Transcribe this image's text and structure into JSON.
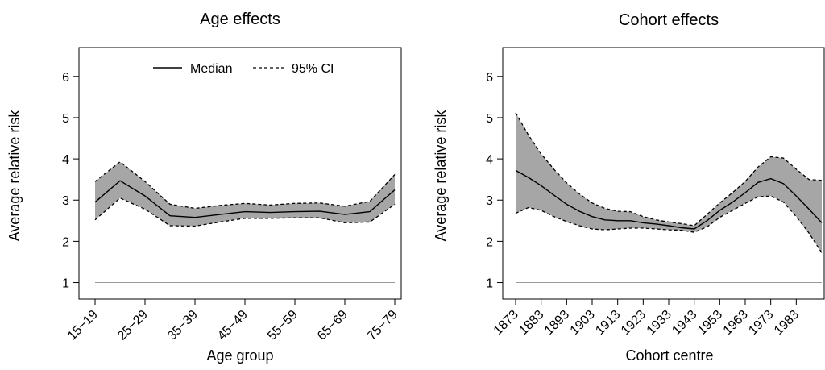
{
  "chart_data": [
    {
      "type": "area",
      "title": "Age effects",
      "xlabel": "Age group",
      "ylabel": "Average relative risk",
      "ylim": [
        0.6,
        6.7
      ],
      "y_ticks": [
        1,
        2,
        3,
        4,
        5,
        6
      ],
      "categories": [
        "15−19",
        "20−24",
        "25−29",
        "30−34",
        "35−39",
        "40−44",
        "45−49",
        "50−54",
        "55−59",
        "60−64",
        "65−69",
        "70−74",
        "75−79"
      ],
      "tick_labels": [
        "15−19",
        "25−29",
        "35−39",
        "45−49",
        "55−59",
        "65−69",
        "75−79"
      ],
      "reference_line": 1,
      "legend": {
        "placement": "top",
        "median_label": "Median",
        "ci_label": "95% CI"
      },
      "series": [
        {
          "name": "Median",
          "values": [
            2.95,
            3.47,
            3.1,
            2.62,
            2.58,
            2.65,
            2.72,
            2.7,
            2.72,
            2.73,
            2.65,
            2.72,
            3.25
          ]
        },
        {
          "name": "95% CI",
          "lower": [
            2.52,
            3.05,
            2.78,
            2.38,
            2.37,
            2.47,
            2.56,
            2.56,
            2.57,
            2.57,
            2.45,
            2.47,
            2.9
          ],
          "upper": [
            3.45,
            3.93,
            3.45,
            2.9,
            2.8,
            2.87,
            2.92,
            2.88,
            2.92,
            2.93,
            2.85,
            2.97,
            3.62
          ]
        }
      ],
      "colors": {
        "band": "#a6a6a6",
        "line": "#000000",
        "reference": "#9a9a9a"
      }
    },
    {
      "type": "area",
      "title": "Cohort effects",
      "xlabel": "Cohort centre",
      "ylabel": "Average relative risk",
      "ylim": [
        0.6,
        6.7
      ],
      "y_ticks": [
        1,
        2,
        3,
        4,
        5,
        6
      ],
      "xlim": [
        1873,
        1993
      ],
      "x_ticks": [
        1873,
        1883,
        1893,
        1903,
        1913,
        1923,
        1933,
        1943,
        1953,
        1963,
        1973,
        1983
      ],
      "x": [
        1873,
        1878,
        1883,
        1888,
        1893,
        1898,
        1903,
        1908,
        1913,
        1918,
        1923,
        1928,
        1933,
        1938,
        1943,
        1948,
        1953,
        1958,
        1963,
        1968,
        1973,
        1978,
        1983,
        1988,
        1993
      ],
      "reference_line": 1,
      "series": [
        {
          "name": "Median",
          "values": [
            3.72,
            3.55,
            3.35,
            3.12,
            2.9,
            2.73,
            2.6,
            2.52,
            2.5,
            2.5,
            2.45,
            2.42,
            2.38,
            2.33,
            2.3,
            2.5,
            2.75,
            2.95,
            3.18,
            3.43,
            3.52,
            3.4,
            3.1,
            2.78,
            2.45
          ]
        },
        {
          "name": "95% CI",
          "lower": [
            2.68,
            2.82,
            2.75,
            2.6,
            2.48,
            2.38,
            2.3,
            2.28,
            2.3,
            2.32,
            2.32,
            2.3,
            2.28,
            2.27,
            2.22,
            2.35,
            2.58,
            2.75,
            2.92,
            3.08,
            3.1,
            2.95,
            2.6,
            2.2,
            1.72
          ],
          "upper": [
            5.12,
            4.58,
            4.12,
            3.75,
            3.42,
            3.15,
            2.93,
            2.8,
            2.73,
            2.72,
            2.6,
            2.52,
            2.47,
            2.43,
            2.38,
            2.65,
            2.93,
            3.18,
            3.45,
            3.8,
            4.05,
            4.02,
            3.75,
            3.5,
            3.48
          ]
        }
      ],
      "colors": {
        "band": "#a6a6a6",
        "line": "#000000",
        "reference": "#9a9a9a"
      }
    }
  ]
}
